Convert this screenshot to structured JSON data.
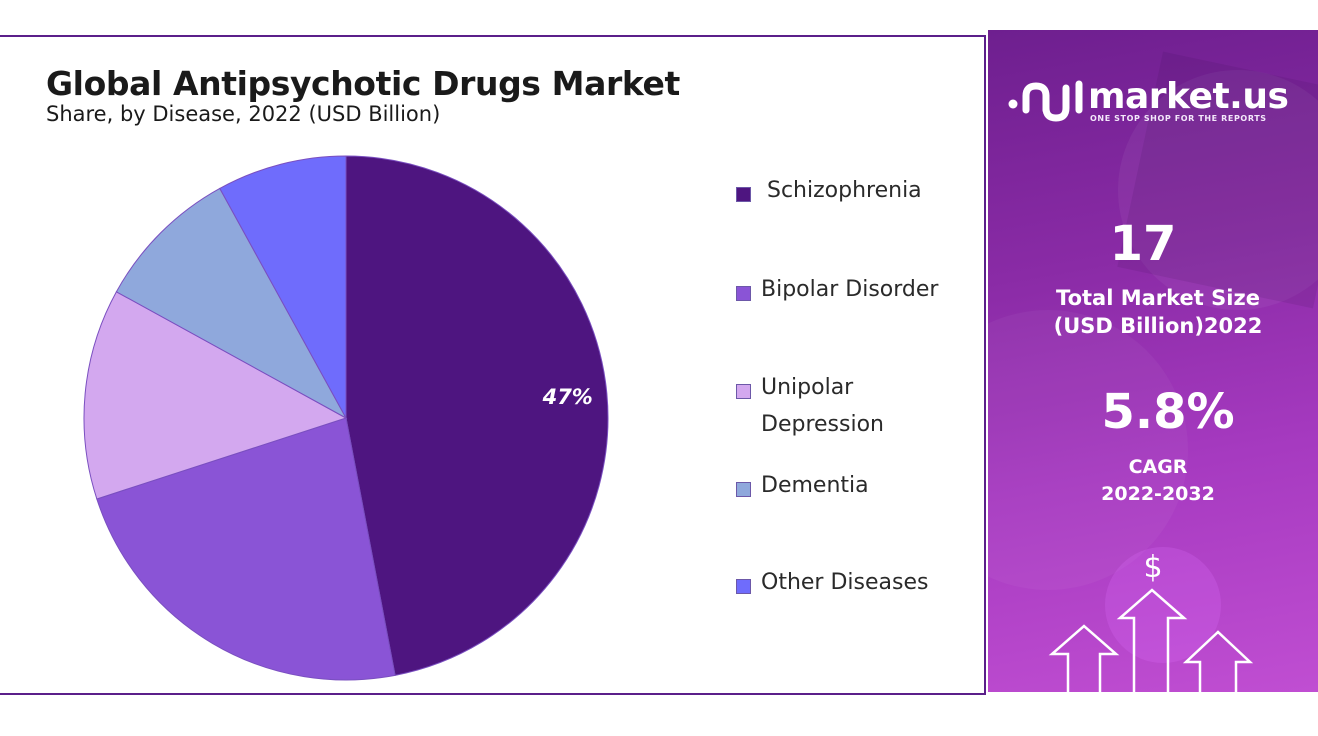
{
  "chart_data": {
    "type": "pie",
    "title": "Global Antipsychotic Drugs Market",
    "subtitle": "Share, by Disease, 2022 (USD Billion)",
    "categories": [
      "Schizophrenia",
      "Bipolar Disorder",
      "Unipolar Depression",
      "Dementia",
      "Other Diseases"
    ],
    "values": [
      47,
      23,
      13,
      9,
      8
    ],
    "data_labels": [
      "47%",
      "",
      "",
      "",
      ""
    ],
    "colors": [
      "#4e1580",
      "#8a54d6",
      "#d3a8ef",
      "#8fa8dc",
      "#6f6cfc"
    ],
    "legend_position": "right",
    "legend": [
      {
        "label": "Schizophrenia"
      },
      {
        "label": "Bipolar Disorder"
      },
      {
        "label": "Unipolar Depression",
        "lines": [
          "Unipolar",
          "Depression"
        ]
      },
      {
        "label": "Dementia"
      },
      {
        "label": "Other Diseases"
      }
    ]
  },
  "sidebar": {
    "brand_name": "market.us",
    "brand_tagline": "ONE STOP SHOP FOR THE REPORTS",
    "market_size_value": "17",
    "market_size_label_line1": "Total Market Size",
    "market_size_label_line2": "(USD Billion)2022",
    "cagr_value": "5.8%",
    "cagr_label": "CAGR",
    "cagr_period": "2022-2032",
    "currency_symbol": "$",
    "icons": [
      "market-us-logo-icon",
      "up-arrow-icon",
      "dollar-icon"
    ]
  }
}
